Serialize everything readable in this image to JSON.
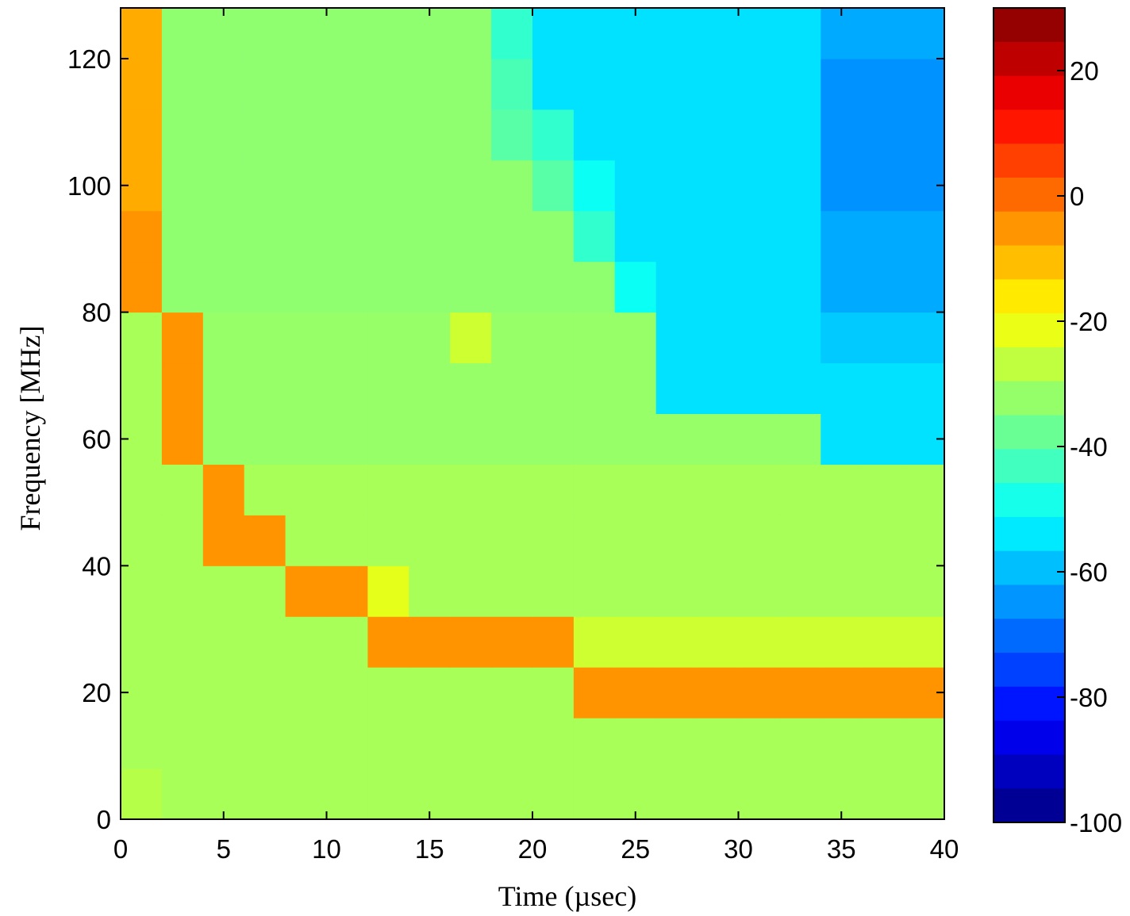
{
  "chart_data": {
    "type": "heatmap",
    "xlabel": "Time (µsec)",
    "ylabel": "Frequency [MHz]",
    "x": [
      1,
      3,
      5,
      7,
      9,
      11,
      13,
      15,
      17,
      19,
      21,
      23,
      25,
      27,
      29,
      31,
      33,
      35,
      37,
      39
    ],
    "y": [
      4,
      12,
      20,
      28,
      36,
      44,
      52,
      60,
      68,
      76,
      84,
      92,
      100,
      108,
      116,
      124
    ],
    "z": [
      [
        -28,
        -30,
        -30,
        -30,
        -30,
        -30,
        -30,
        -30,
        -30,
        -30,
        -30,
        -30,
        -30,
        -30,
        -30,
        -30,
        -30,
        -30,
        -30,
        -30
      ],
      [
        -30,
        -30,
        -30,
        -30,
        -30,
        -30,
        -30,
        -30,
        -30,
        -30,
        -30,
        -30,
        -30,
        -30,
        -30,
        -30,
        -30,
        -30,
        -30,
        -30
      ],
      [
        -30,
        -30,
        -30,
        -30,
        -30,
        -30,
        -30,
        -30,
        -30,
        -30,
        -30,
        -5,
        -5,
        -5,
        -5,
        -5,
        -5,
        -5,
        -5,
        -5
      ],
      [
        -30,
        -30,
        -30,
        -30,
        -30,
        -30,
        -5,
        -5,
        -5,
        -5,
        -5,
        -25,
        -25,
        -25,
        -25,
        -25,
        -25,
        -25,
        -25,
        -25
      ],
      [
        -30,
        -30,
        -30,
        -30,
        -5,
        -5,
        -22,
        -30,
        -30,
        -30,
        -30,
        -30,
        -30,
        -30,
        -30,
        -30,
        -30,
        -30,
        -30,
        -30
      ],
      [
        -30,
        -30,
        -5,
        -5,
        -30,
        -30,
        -30,
        -30,
        -30,
        -30,
        -30,
        -30,
        -30,
        -30,
        -30,
        -30,
        -30,
        -30,
        -30,
        -30
      ],
      [
        -30,
        -30,
        -5,
        -30,
        -30,
        -30,
        -30,
        -30,
        -30,
        -30,
        -30,
        -30,
        -30,
        -30,
        -30,
        -30,
        -30,
        -30,
        -30,
        -30
      ],
      [
        -30,
        -5,
        -32,
        -32,
        -32,
        -32,
        -32,
        -32,
        -32,
        -32,
        -32,
        -32,
        -32,
        -32,
        -32,
        -32,
        -32,
        -55,
        -55,
        -55
      ],
      [
        -30,
        -5,
        -32,
        -32,
        -32,
        -32,
        -32,
        -32,
        -32,
        -32,
        -32,
        -32,
        -32,
        -55,
        -55,
        -55,
        -55,
        -55,
        -55,
        -55
      ],
      [
        -30,
        -5,
        -32,
        -32,
        -32,
        -32,
        -32,
        -32,
        -25,
        -32,
        -32,
        -32,
        -32,
        -55,
        -55,
        -55,
        -55,
        -58,
        -58,
        -58
      ],
      [
        -5,
        -33,
        -33,
        -33,
        -33,
        -33,
        -33,
        -33,
        -33,
        -33,
        -33,
        -33,
        -50,
        -55,
        -55,
        -55,
        -55,
        -62,
        -62,
        -62
      ],
      [
        -5,
        -33,
        -33,
        -33,
        -33,
        -33,
        -33,
        -33,
        -33,
        -33,
        -33,
        -45,
        -55,
        -55,
        -55,
        -55,
        -55,
        -62,
        -62,
        -62
      ],
      [
        -8,
        -33,
        -33,
        -33,
        -33,
        -33,
        -33,
        -33,
        -33,
        -33,
        -40,
        -50,
        -55,
        -55,
        -55,
        -55,
        -55,
        -65,
        -65,
        -65
      ],
      [
        -8,
        -33,
        -33,
        -33,
        -33,
        -33,
        -33,
        -33,
        -33,
        -40,
        -45,
        -55,
        -55,
        -55,
        -55,
        -55,
        -55,
        -65,
        -65,
        -65
      ],
      [
        -8,
        -33,
        -33,
        -33,
        -33,
        -33,
        -33,
        -33,
        -33,
        -42,
        -55,
        -55,
        -55,
        -55,
        -55,
        -55,
        -55,
        -65,
        -65,
        -65
      ],
      [
        -8,
        -33,
        -33,
        -33,
        -33,
        -33,
        -33,
        -33,
        -33,
        -45,
        -55,
        -55,
        -55,
        -55,
        -55,
        -55,
        -55,
        -62,
        -62,
        -62
      ]
    ],
    "xlim": [
      0,
      40
    ],
    "xticks": [
      0,
      5,
      10,
      15,
      20,
      25,
      30,
      35,
      40
    ],
    "ylim": [
      0,
      128
    ],
    "yticks": [
      0,
      20,
      40,
      60,
      80,
      100,
      120
    ],
    "clim": [
      -100,
      30
    ],
    "cticks": [
      -100,
      -80,
      -60,
      -40,
      -20,
      0,
      20
    ],
    "colormap": "jet"
  }
}
